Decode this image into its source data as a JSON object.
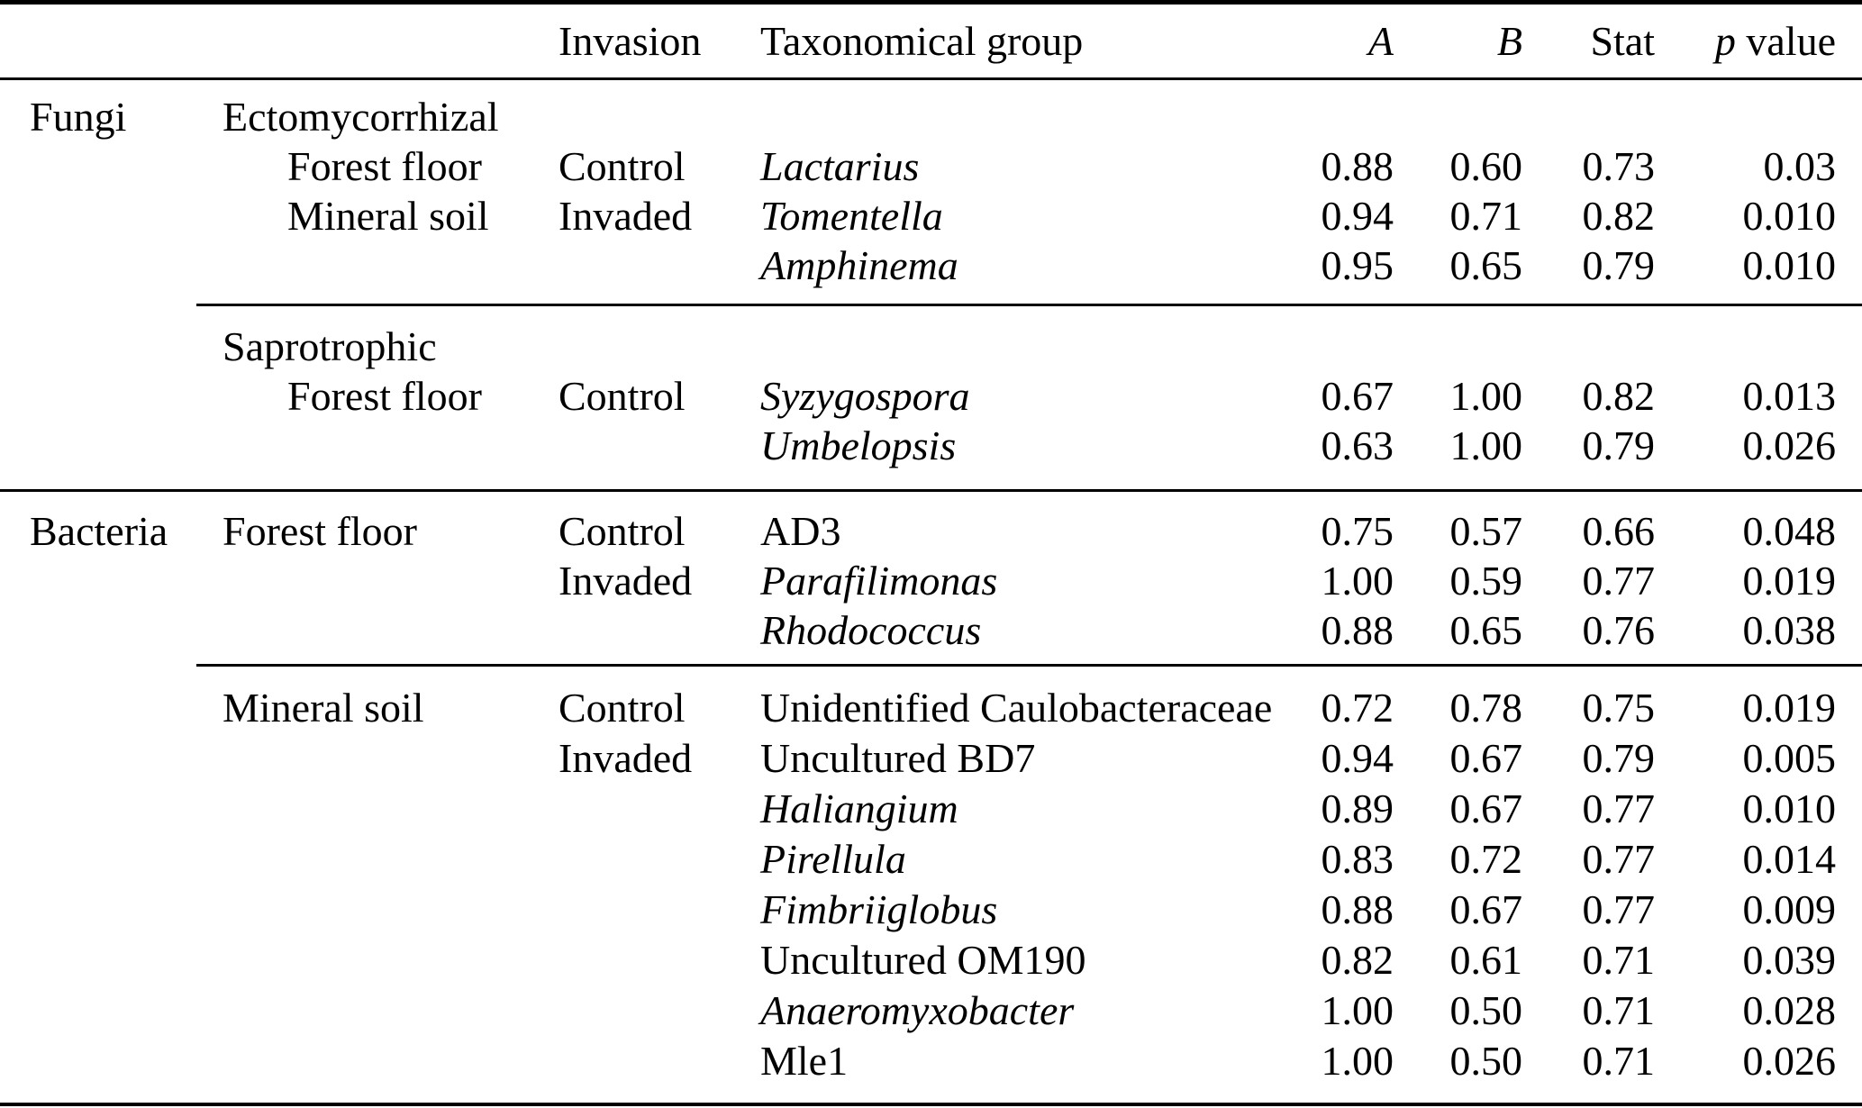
{
  "colors": {
    "text": "#000000",
    "background": "#ffffff",
    "rule": "#000000"
  },
  "table": {
    "header": {
      "invasion": "Invasion",
      "taxonomical_group": "Taxonomical group",
      "a": "A",
      "b": "B",
      "stat": "Stat",
      "p": "p",
      "p_value_rest": " value"
    },
    "sections": [
      {
        "kingdom": "Fungi",
        "group": "Ectomycorrhizal",
        "rows": [
          {
            "habitat": "Forest floor",
            "invasion": "Control",
            "taxon": "Lactarius",
            "a": "0.88",
            "b": "0.60",
            "stat": "0.73",
            "p": "0.03"
          },
          {
            "habitat": "Mineral soil",
            "invasion": "Invaded",
            "taxon": "Tomentella",
            "a": "0.94",
            "b": "0.71",
            "stat": "0.82",
            "p": "0.010"
          },
          {
            "habitat": "",
            "invasion": "",
            "taxon": "Amphinema",
            "a": "0.95",
            "b": "0.65",
            "stat": "0.79",
            "p": "0.010"
          }
        ]
      },
      {
        "kingdom": "",
        "group": "Saprotrophic",
        "rows": [
          {
            "habitat": "Forest floor",
            "invasion": "Control",
            "taxon": "Syzygospora",
            "a": "0.67",
            "b": "1.00",
            "stat": "0.82",
            "p": "0.013"
          },
          {
            "habitat": "",
            "invasion": "",
            "taxon": "Umbelopsis",
            "a": "0.63",
            "b": "1.00",
            "stat": "0.79",
            "p": "0.026"
          }
        ]
      },
      {
        "kingdom": "Bacteria",
        "group": "",
        "rows": [
          {
            "habitat": "Forest floor",
            "invasion": "Control",
            "taxon": "AD3",
            "a": "0.75",
            "b": "0.57",
            "stat": "0.66",
            "p": "0.048"
          },
          {
            "habitat": "",
            "invasion": "Invaded",
            "taxon": "Parafilimonas",
            "a": "1.00",
            "b": "0.59",
            "stat": "0.77",
            "p": "0.019"
          },
          {
            "habitat": "",
            "invasion": "",
            "taxon": "Rhodococcus",
            "a": "0.88",
            "b": "0.65",
            "stat": "0.76",
            "p": "0.038"
          }
        ]
      },
      {
        "kingdom": "",
        "group": "",
        "rows": [
          {
            "habitat": "Mineral soil",
            "invasion": "Control",
            "taxon": "Unidentified Caulobacteraceae",
            "a": "0.72",
            "b": "0.78",
            "stat": "0.75",
            "p": "0.019"
          },
          {
            "habitat": "",
            "invasion": "Invaded",
            "taxon": "Uncultured BD7",
            "a": "0.94",
            "b": "0.67",
            "stat": "0.79",
            "p": "0.005"
          },
          {
            "habitat": "",
            "invasion": "",
            "taxon": "Haliangium",
            "a": "0.89",
            "b": "0.67",
            "stat": "0.77",
            "p": "0.010"
          },
          {
            "habitat": "",
            "invasion": "",
            "taxon": "Pirellula",
            "a": "0.83",
            "b": "0.72",
            "stat": "0.77",
            "p": "0.014"
          },
          {
            "habitat": "",
            "invasion": "",
            "taxon": "Fimbriiglobus",
            "a": "0.88",
            "b": "0.67",
            "stat": "0.77",
            "p": "0.009"
          },
          {
            "habitat": "",
            "invasion": "",
            "taxon": "Uncultured OM190",
            "a": "0.82",
            "b": "0.61",
            "stat": "0.71",
            "p": "0.039"
          },
          {
            "habitat": "",
            "invasion": "",
            "taxon": "Anaeromyxobacter",
            "a": "1.00",
            "b": "0.50",
            "stat": "0.71",
            "p": "0.028"
          },
          {
            "habitat": "",
            "invasion": "",
            "taxon": "Mle1",
            "a": "1.00",
            "b": "0.50",
            "stat": "0.71",
            "p": "0.026"
          }
        ]
      }
    ]
  }
}
